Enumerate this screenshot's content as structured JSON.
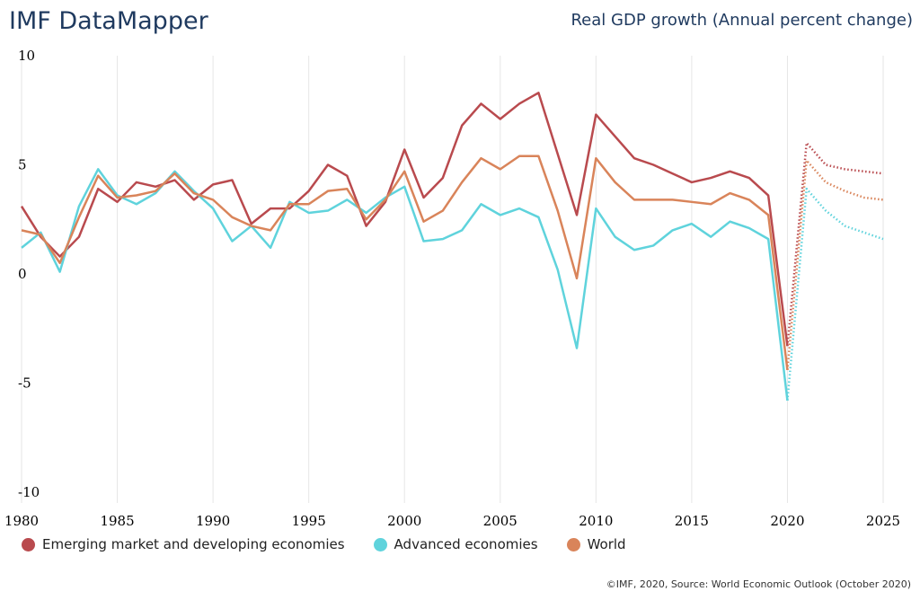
{
  "header": {
    "app_title": "IMF DataMapper",
    "chart_title": "Real GDP growth (Annual percent change)"
  },
  "footer": {
    "credit": "©IMF, 2020, Source: World Economic Outlook (October 2020)"
  },
  "chart_data": {
    "type": "line",
    "title": "Real GDP growth (Annual percent change)",
    "xlabel": "",
    "ylabel": "",
    "xlim": [
      1980,
      2025
    ],
    "ylim": [
      -10,
      10
    ],
    "y_ticks": [
      10,
      5,
      0,
      -5,
      -10
    ],
    "x_ticks": [
      1980,
      1985,
      1990,
      1995,
      2000,
      2005,
      2010,
      2015,
      2020,
      2025
    ],
    "grid": "vertical",
    "legend_position": "bottom-left",
    "forecast_from": 2020,
    "x": [
      1980,
      1981,
      1982,
      1983,
      1984,
      1985,
      1986,
      1987,
      1988,
      1989,
      1990,
      1991,
      1992,
      1993,
      1994,
      1995,
      1996,
      1997,
      1998,
      1999,
      2000,
      2001,
      2002,
      2003,
      2004,
      2005,
      2006,
      2007,
      2008,
      2009,
      2010,
      2011,
      2012,
      2013,
      2014,
      2015,
      2016,
      2017,
      2018,
      2019,
      2020,
      2021,
      2022,
      2023,
      2024,
      2025
    ],
    "series": [
      {
        "name": "Emerging market and developing economies",
        "color": "#b94a4e",
        "values": [
          3.1,
          1.7,
          0.8,
          1.7,
          3.9,
          3.3,
          4.2,
          4.0,
          4.3,
          3.4,
          4.1,
          4.3,
          2.3,
          3.0,
          3.0,
          3.8,
          5.0,
          4.5,
          2.2,
          3.3,
          5.7,
          3.5,
          4.4,
          6.8,
          7.8,
          7.1,
          7.8,
          8.3,
          5.5,
          2.7,
          7.3,
          6.3,
          5.3,
          5.0,
          4.6,
          4.2,
          4.4,
          4.7,
          4.4,
          3.6,
          -3.3,
          6.0,
          5.0,
          4.8,
          4.7,
          4.6
        ]
      },
      {
        "name": "Advanced economies",
        "color": "#5fd3dc",
        "values": [
          1.2,
          1.9,
          0.1,
          3.1,
          4.8,
          3.6,
          3.2,
          3.7,
          4.7,
          3.8,
          3.0,
          1.5,
          2.2,
          1.2,
          3.3,
          2.8,
          2.9,
          3.4,
          2.8,
          3.5,
          4.0,
          1.5,
          1.6,
          2.0,
          3.2,
          2.7,
          3.0,
          2.6,
          0.2,
          -3.4,
          3.0,
          1.7,
          1.1,
          1.3,
          2.0,
          2.3,
          1.7,
          2.4,
          2.1,
          1.6,
          -5.8,
          3.9,
          2.9,
          2.2,
          1.9,
          1.6
        ]
      },
      {
        "name": "World",
        "color": "#d9845a",
        "values": [
          2.0,
          1.8,
          0.5,
          2.6,
          4.5,
          3.5,
          3.6,
          3.8,
          4.6,
          3.7,
          3.4,
          2.6,
          2.2,
          2.0,
          3.2,
          3.2,
          3.8,
          3.9,
          2.5,
          3.4,
          4.7,
          2.4,
          2.9,
          4.2,
          5.3,
          4.8,
          5.4,
          5.4,
          2.9,
          -0.2,
          5.3,
          4.2,
          3.4,
          3.4,
          3.4,
          3.3,
          3.2,
          3.7,
          3.4,
          2.7,
          -4.4,
          5.2,
          4.2,
          3.8,
          3.5,
          3.4
        ]
      }
    ]
  }
}
